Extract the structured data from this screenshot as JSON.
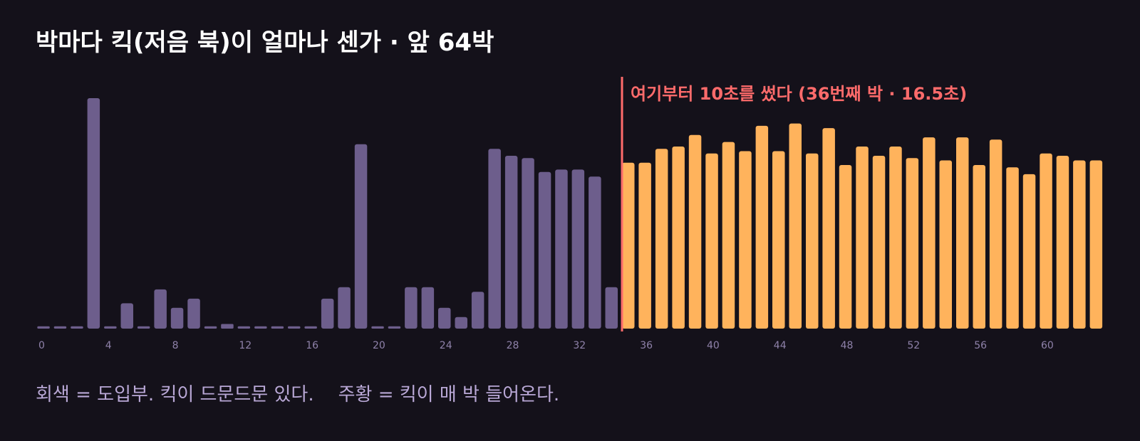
{
  "title": "박마다 킥(저음 북)이 얼마나 센가 · 앞 64박",
  "colors": {
    "background": "#14111a",
    "before": "#6d5e8c",
    "after": "#ffb35c",
    "marker": "#ff6b6b",
    "tick": "#8f82aa",
    "caption": "#b9a8d6"
  },
  "chart_data": {
    "type": "bar",
    "x": [
      0,
      1,
      2,
      3,
      4,
      5,
      6,
      7,
      8,
      9,
      10,
      11,
      12,
      13,
      14,
      15,
      16,
      17,
      18,
      19,
      20,
      21,
      22,
      23,
      24,
      25,
      26,
      27,
      28,
      29,
      30,
      31,
      32,
      33,
      34,
      35,
      36,
      37,
      38,
      39,
      40,
      41,
      42,
      43,
      44,
      45,
      46,
      47,
      48,
      49,
      50,
      51,
      52,
      53,
      54,
      55,
      56,
      57,
      58,
      59,
      60,
      61,
      62,
      63
    ],
    "values": [
      0.01,
      0.01,
      0.01,
      1.0,
      0.01,
      0.11,
      0.01,
      0.17,
      0.09,
      0.13,
      0.01,
      0.02,
      0.01,
      0.01,
      0.01,
      0.01,
      0.01,
      0.13,
      0.18,
      0.8,
      0.01,
      0.01,
      0.18,
      0.18,
      0.09,
      0.05,
      0.16,
      0.78,
      0.75,
      0.74,
      0.68,
      0.69,
      0.69,
      0.66,
      0.18,
      0.72,
      0.72,
      0.78,
      0.79,
      0.84,
      0.76,
      0.81,
      0.77,
      0.88,
      0.77,
      0.89,
      0.76,
      0.87,
      0.71,
      0.79,
      0.75,
      0.79,
      0.74,
      0.83,
      0.73,
      0.83,
      0.71,
      0.82,
      0.7,
      0.67,
      0.76,
      0.75,
      0.73,
      0.73
    ],
    "xticks": [
      0,
      4,
      8,
      12,
      16,
      20,
      24,
      28,
      32,
      36,
      40,
      44,
      48,
      52,
      56,
      60
    ],
    "xlim": [
      0,
      63
    ],
    "ylim": [
      0,
      1
    ],
    "threshold_index": 35,
    "annotation": "여기부터 10초를 썼다 (36번째 박 · 16.5초)",
    "grid": false
  },
  "caption": {
    "before": "회색 = 도입부. 킥이 드문드문 있다.",
    "after": "주황 = 킥이 매 박 들어온다."
  }
}
